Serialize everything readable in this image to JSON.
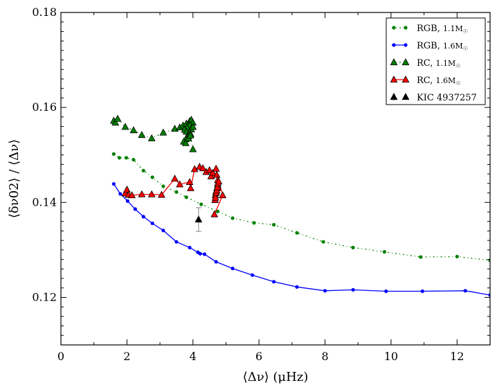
{
  "chart_data": {
    "type": "scatter",
    "xlabel": "⟨Δν⟩ (μHz)",
    "ylabel": "⟨δν02⟩ / ⟨Δν⟩",
    "xlim": [
      0,
      13
    ],
    "ylim": [
      0.11,
      0.18
    ],
    "xticks": [
      "0",
      "2",
      "4",
      "6",
      "8",
      "10",
      "12"
    ],
    "xtick_values": [
      0,
      2,
      4,
      6,
      8,
      10,
      12
    ],
    "yticks": [
      "0.12",
      "0.14",
      "0.16",
      "0.18"
    ],
    "ytick_values": [
      0.12,
      0.14,
      0.16,
      0.18
    ],
    "legend_position": "top-right",
    "series": [
      {
        "name": "RGB, 1.1M☉",
        "label_main": "RGB, ",
        "label_mass": "1.1M",
        "color": "#008000",
        "marker": "dot",
        "line": "dashdot",
        "x": [
          1.6,
          1.77,
          1.98,
          2.2,
          2.5,
          2.77,
          3.1,
          3.5,
          3.8,
          4.25,
          4.75,
          5.2,
          5.85,
          6.45,
          7.15,
          7.95,
          8.85,
          9.8,
          10.9,
          12.0,
          13.0
        ],
        "y": [
          0.1502,
          0.1494,
          0.1494,
          0.149,
          0.1467,
          0.1453,
          0.1434,
          0.1422,
          0.1411,
          0.1396,
          0.1381,
          0.1367,
          0.1357,
          0.1353,
          0.1336,
          0.1317,
          0.1305,
          0.1296,
          0.1285,
          0.1286,
          0.1278
        ]
      },
      {
        "name": "RGB, 1.6M☉",
        "label_main": "RGB, ",
        "label_mass": "1.6M",
        "color": "#0000ff",
        "marker": "dot",
        "line": "solid",
        "x": [
          1.6,
          1.8,
          2.02,
          2.25,
          2.5,
          2.77,
          3.1,
          3.5,
          3.9,
          4.15,
          4.22,
          4.35,
          4.7,
          5.2,
          5.8,
          6.45,
          7.15,
          8.0,
          8.85,
          9.85,
          10.95,
          12.25,
          13.0
        ],
        "y": [
          0.1439,
          0.1418,
          0.1403,
          0.1386,
          0.137,
          0.1356,
          0.1341,
          0.1317,
          0.1305,
          0.1295,
          0.1292,
          0.1291,
          0.1275,
          0.1261,
          0.1247,
          0.1233,
          0.1222,
          0.1214,
          0.1216,
          0.1213,
          0.1213,
          0.1214,
          0.1205
        ]
      },
      {
        "name": "RC, 1.1M☉",
        "label_main": "RC, ",
        "label_mass": "1.1M",
        "color": "#008000",
        "marker": "triangle",
        "line": "dashdot",
        "x": [
          1.6,
          1.65,
          1.72,
          1.95,
          2.2,
          2.45,
          2.75,
          3.1,
          3.45,
          3.6,
          3.7,
          3.8,
          3.9,
          3.95,
          4.0,
          3.9,
          3.82,
          3.75,
          3.8,
          3.88,
          3.95,
          4.0,
          3.93,
          3.85,
          3.78,
          3.72,
          3.78,
          3.86,
          3.92,
          4.0
        ],
        "y": [
          0.1572,
          0.1568,
          0.1576,
          0.1559,
          0.1552,
          0.1542,
          0.1535,
          0.1547,
          0.1555,
          0.1558,
          0.1562,
          0.1566,
          0.1571,
          0.1574,
          0.1568,
          0.1563,
          0.1558,
          0.1553,
          0.1549,
          0.1546,
          0.1554,
          0.1559,
          0.1544,
          0.1539,
          0.1533,
          0.1528,
          0.1525,
          0.1535,
          0.1541,
          0.1512
        ]
      },
      {
        "name": "RC, 1.6M☉",
        "label_main": "RC, ",
        "label_mass": "1.6M",
        "color": "#ff0000",
        "marker": "triangle",
        "line": "solid",
        "x": [
          1.95,
          2.0,
          2.05,
          2.15,
          2.45,
          2.75,
          3.05,
          3.45,
          3.6,
          3.9,
          3.93,
          4.05,
          4.2,
          4.3,
          4.4,
          4.5,
          4.55,
          4.6,
          4.7,
          4.72,
          4.75,
          4.75,
          4.73,
          4.7,
          4.68,
          4.67,
          4.68,
          4.7,
          4.72,
          4.74,
          4.75,
          4.78,
          4.9,
          4.65
        ],
        "y": [
          0.1419,
          0.1427,
          0.1416,
          0.1415,
          0.1417,
          0.1417,
          0.1416,
          0.145,
          0.1438,
          0.1443,
          0.143,
          0.147,
          0.1475,
          0.1472,
          0.1464,
          0.1468,
          0.1455,
          0.1462,
          0.1471,
          0.1458,
          0.1447,
          0.1436,
          0.143,
          0.1423,
          0.1415,
          0.1405,
          0.141,
          0.142,
          0.1425,
          0.1432,
          0.144,
          0.1444,
          0.1415,
          0.1375
        ]
      },
      {
        "name": "KIC 4937257",
        "label_main": "KIC 4937257",
        "label_mass": "",
        "color": "#000000",
        "marker": "triangle",
        "line": "none",
        "x": [
          4.17
        ],
        "y": [
          0.1364
        ],
        "yerr": [
          0.0025
        ]
      }
    ]
  }
}
